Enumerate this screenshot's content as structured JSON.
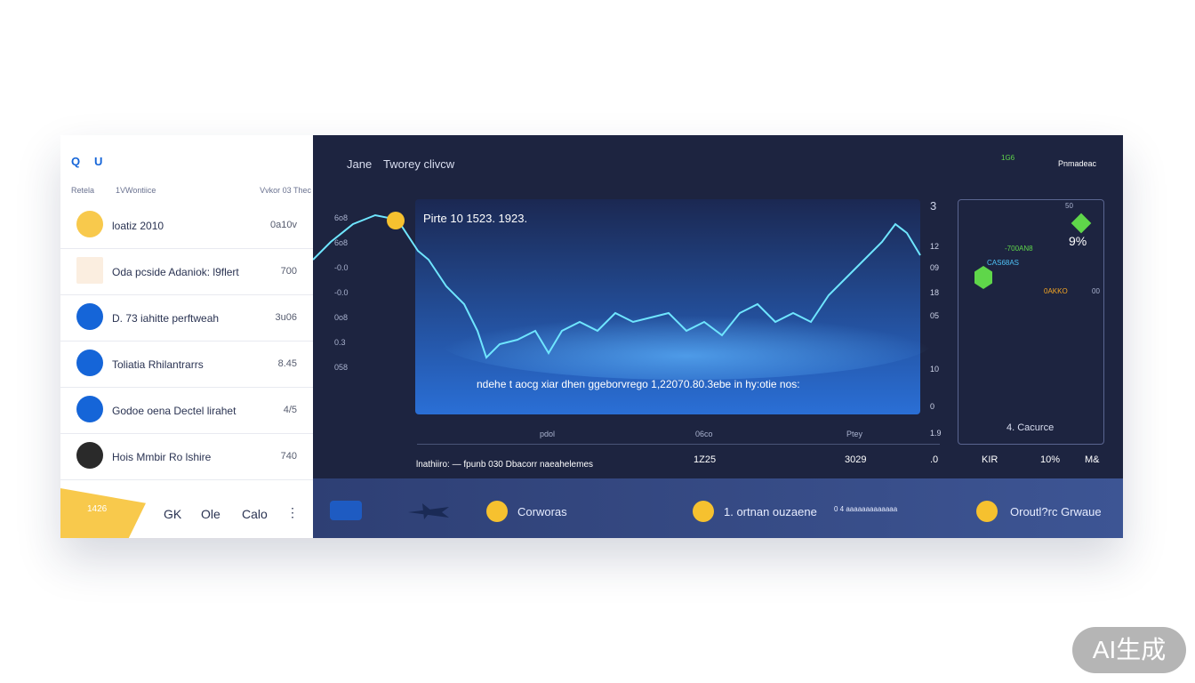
{
  "left_panel": {
    "icons": [
      "Q",
      "U"
    ],
    "headers": [
      "Retela",
      "1VWontiice",
      "Vvkor 03 Thec"
    ],
    "rows": [
      {
        "label": "loatiz 2010",
        "value": "0a10v"
      },
      {
        "label": "Oda pcside Adaniok: l9flert",
        "value": "700"
      },
      {
        "label": "D. 73 iahitte perftweah",
        "value": "3u06"
      },
      {
        "label": "Toliatia Rhilantrarrs",
        "value": "8.45"
      },
      {
        "label": "Godoe oena Dectel lirahet",
        "value": "4/5"
      },
      {
        "label": "Hois Mmbir Ro lshire",
        "value": "740"
      }
    ],
    "footer": {
      "badge": "1426",
      "tabs": [
        "GK",
        "Ole",
        "Calo"
      ]
    }
  },
  "main_panel": {
    "title": "Jane",
    "subtitle": "Tworey clivcw",
    "top_right": "Pnmadeac",
    "chart_caption": "Pirte 10 1523. 1923.",
    "chart_note": "ndehe t aocg xiar dhen ggeborvrego 1,22070.80.3ebe in hy:otie nos:",
    "left_axis": [
      "6o8",
      "6o8",
      "-0.0",
      "-0.0",
      "0o8",
      "0.3",
      "058"
    ],
    "right_axis": [
      "3",
      "12",
      "09",
      "18",
      "05",
      "10",
      "0",
      "1.9"
    ],
    "x_labels": [
      "pdol",
      "06co",
      "Ptey"
    ],
    "bottom_row": [
      "lnathiiro: — fpunb 030 Dbacorr naeahelemes",
      "1Z25",
      "3029",
      ".0",
      "KIR",
      "10%",
      "M&"
    ],
    "side_card": {
      "items": [
        "1G6",
        "-700AN8",
        "50",
        "9%",
        "CAS68AS",
        "0AKKO",
        "00"
      ],
      "footer": "4. Cacurce"
    }
  },
  "bottom_strip": [
    "Corworas",
    "1. ortnan ouzaene",
    "0 4 aaaaaaaaaaaaa",
    "Oroutl?rc Grwaue"
  ],
  "watermark": "AI生成"
}
